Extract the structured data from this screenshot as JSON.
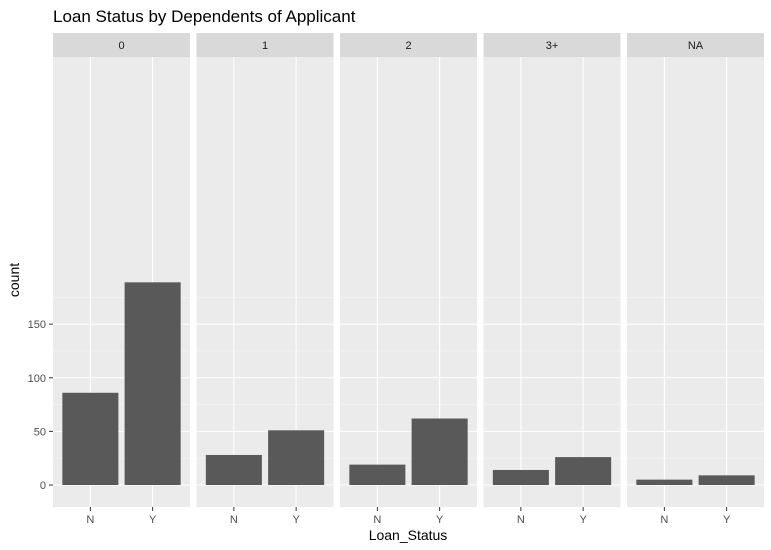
{
  "chart_data": {
    "type": "bar",
    "title": "Loan Status by Dependents of Applicant",
    "xlabel": "Loan_Status",
    "ylabel": "count",
    "categories": [
      "N",
      "Y"
    ],
    "ylim": [
      0,
      200
    ],
    "yticks": [
      0,
      50,
      100,
      150
    ],
    "facets": [
      {
        "label": "0",
        "values": [
          86,
          189
        ]
      },
      {
        "label": "1",
        "values": [
          28,
          51
        ]
      },
      {
        "label": "2",
        "values": [
          19,
          62
        ]
      },
      {
        "label": "3+",
        "values": [
          14,
          26
        ]
      },
      {
        "label": "NA",
        "values": [
          5,
          9
        ]
      }
    ],
    "grid": true,
    "colors": {
      "bar": "#595959",
      "panel": "#ebebeb",
      "strip": "#d9d9d9",
      "grid_major": "#ffffff",
      "grid_minor": "#f5f5f5"
    }
  }
}
